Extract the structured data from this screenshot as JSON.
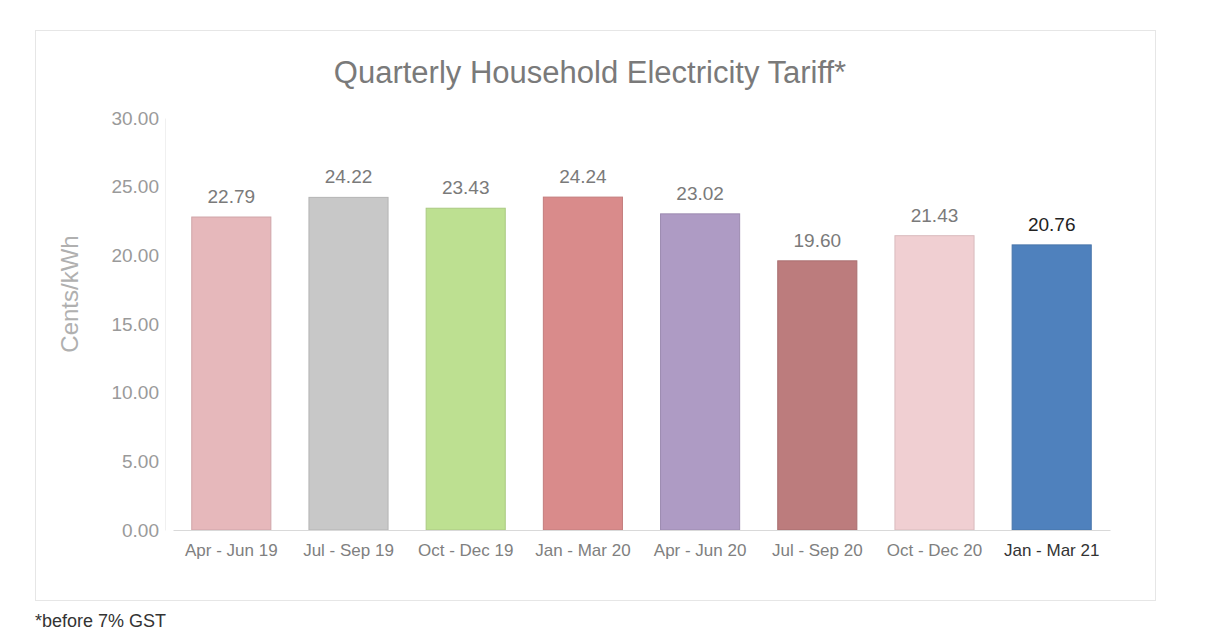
{
  "chart_data": {
    "type": "bar",
    "title": "Quarterly Household Electricity Tariff*",
    "y_label": "Cents/kWh",
    "annotations": [
      "*before 7% GST"
    ],
    "categories": [
      "Apr - Jun 19",
      "Jul - Sep 19",
      "Oct - Dec 19",
      "Jan - Mar 20",
      "Apr - Jun 20",
      "Jul - Sep 20",
      "Oct - Dec 20",
      "Jan - Mar 21"
    ],
    "values": [
      22.79,
      24.22,
      23.43,
      24.24,
      23.02,
      19.6,
      21.43,
      20.76
    ],
    "value_labels": [
      "22.79",
      "24.22",
      "23.43",
      "24.24",
      "23.02",
      "19.60",
      "21.43",
      "20.76"
    ],
    "colors": [
      "#e6b8bb",
      "#c8c8c8",
      "#bde091",
      "#d98b8b",
      "#ae9bc4",
      "#bc7c7d",
      "#f0cfd2",
      "#4f81bd"
    ],
    "ylim": [
      0,
      30
    ],
    "yticks": [
      {
        "value": 0,
        "label": "0.00"
      },
      {
        "value": 5,
        "label": "5.00"
      },
      {
        "value": 10,
        "label": "10.00"
      },
      {
        "value": 15,
        "label": "15.00"
      },
      {
        "value": 20,
        "label": "20.00"
      },
      {
        "value": 25,
        "label": "25.00"
      },
      {
        "value": 30,
        "label": "30.00"
      }
    ],
    "grid": false,
    "data_labels": true
  }
}
